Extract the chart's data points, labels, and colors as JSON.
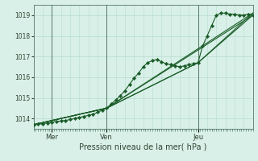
{
  "bg_color": "#d8f0e8",
  "grid_color": "#b8ddd0",
  "line_color": "#1a5c28",
  "marker_color": "#1a5c28",
  "xlabel": "Pression niveau de la mer( hPa )",
  "xlim": [
    0,
    96
  ],
  "ylim": [
    1013.5,
    1019.5
  ],
  "yticks": [
    1014,
    1015,
    1016,
    1017,
    1018,
    1019
  ],
  "xtick_labels": [
    "Mer",
    "Ven",
    "Jeu"
  ],
  "xtick_positions": [
    8,
    32,
    72
  ],
  "vline_positions": [
    8,
    32,
    72
  ],
  "minor_xtick_count": 96,
  "series1_x": [
    0,
    2,
    4,
    6,
    8,
    10,
    12,
    14,
    16,
    18,
    20,
    22,
    24,
    26,
    28,
    30,
    32,
    34,
    36,
    38,
    40,
    42,
    44,
    46,
    48,
    50,
    52,
    54,
    56,
    58,
    60,
    62,
    64,
    66,
    68,
    70,
    72,
    74,
    76,
    78,
    80,
    82,
    84,
    86,
    88,
    90,
    92,
    94,
    96
  ],
  "series1_y": [
    1013.7,
    1013.72,
    1013.75,
    1013.78,
    1013.82,
    1013.85,
    1013.88,
    1013.9,
    1013.95,
    1014.0,
    1014.05,
    1014.1,
    1014.15,
    1014.2,
    1014.3,
    1014.4,
    1014.5,
    1014.7,
    1014.9,
    1015.1,
    1015.35,
    1015.65,
    1015.95,
    1016.2,
    1016.5,
    1016.7,
    1016.8,
    1016.85,
    1016.75,
    1016.65,
    1016.6,
    1016.55,
    1016.5,
    1016.55,
    1016.6,
    1016.65,
    1016.7,
    1017.5,
    1018.0,
    1018.5,
    1019.0,
    1019.1,
    1019.1,
    1019.05,
    1019.05,
    1019.0,
    1019.0,
    1019.05,
    1019.0
  ],
  "series2_x": [
    0,
    32,
    96
  ],
  "series2_y": [
    1013.7,
    1014.5,
    1019.0
  ],
  "series3_x": [
    0,
    32,
    96
  ],
  "series3_y": [
    1013.7,
    1014.5,
    1019.1
  ],
  "series4_x": [
    0,
    32,
    72,
    96
  ],
  "series4_y": [
    1013.7,
    1014.5,
    1016.7,
    1019.0
  ],
  "series5_x": [
    0,
    32,
    72,
    96
  ],
  "series5_y": [
    1013.7,
    1014.5,
    1016.7,
    1019.1
  ]
}
